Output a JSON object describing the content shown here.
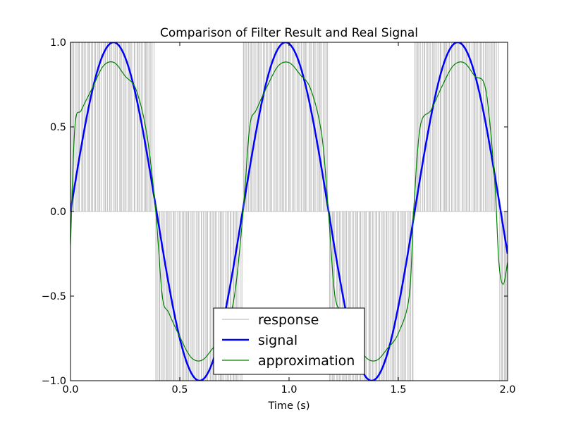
{
  "chart_data": {
    "type": "line",
    "title": "Comparison of Filter Result and Real Signal",
    "xlabel": "Time (s)",
    "ylabel": "",
    "xlim": [
      0.0,
      2.0
    ],
    "ylim": [
      -1.0,
      1.0
    ],
    "x_ticks": [
      0.0,
      0.5,
      1.0,
      1.5,
      2.0
    ],
    "x_tick_labels": [
      "0.0",
      "0.5",
      "1.0",
      "1.5",
      "2.0"
    ],
    "y_ticks": [
      1.0,
      0.5,
      0.0,
      -0.5,
      -1.0
    ],
    "y_tick_labels": [
      "1.0",
      "0.5",
      "0.0",
      "−0.5",
      "−1.0"
    ],
    "grid": false,
    "legend_position": "bottom-center",
    "series": [
      {
        "name": "response",
        "style": "pulse-stems",
        "color": "#c0c0c0",
        "positive_intervals": [
          [
            0.0,
            0.39
          ],
          [
            0.79,
            1.18
          ],
          [
            1.57,
            1.96
          ]
        ],
        "negative_intervals": [
          [
            0.39,
            0.79
          ],
          [
            1.18,
            1.57
          ],
          [
            1.96,
            2.0
          ]
        ],
        "stem_count": 300
      },
      {
        "name": "signal",
        "style": "thick-line",
        "color": "#0000ff",
        "function": "sine",
        "amplitude": 1.0,
        "frequency_hz": 1.27,
        "x": [
          0.0,
          0.1,
          0.2,
          0.3,
          0.4,
          0.5,
          0.6,
          0.7,
          0.8,
          0.9,
          1.0,
          1.1,
          1.2,
          1.3,
          1.4,
          1.5,
          1.6,
          1.7,
          1.8,
          1.9,
          2.0
        ],
        "y": [
          0.0,
          0.71,
          1.0,
          0.7,
          -0.02,
          -0.72,
          -1.0,
          -0.69,
          0.04,
          0.73,
          1.0,
          0.68,
          -0.05,
          -0.74,
          -1.0,
          -0.67,
          0.07,
          0.75,
          1.0,
          0.66,
          -0.08
        ]
      },
      {
        "name": "approximation",
        "style": "thin-line",
        "color": "#008000",
        "x": [
          0.0,
          0.02,
          0.05,
          0.1,
          0.15,
          0.2,
          0.25,
          0.3,
          0.35,
          0.39,
          0.42,
          0.45,
          0.5,
          0.55,
          0.6,
          0.65,
          0.7,
          0.75,
          0.79,
          0.82,
          0.85,
          0.9,
          0.95,
          1.0,
          1.05,
          1.1,
          1.15,
          1.18,
          1.21,
          1.25,
          1.3,
          1.35,
          1.4,
          1.45,
          1.5,
          1.55,
          1.57,
          1.6,
          1.65,
          1.7,
          1.75,
          1.8,
          1.85,
          1.9,
          1.94,
          1.96,
          1.98,
          2.0
        ],
        "y": [
          -0.2,
          0.5,
          0.6,
          0.73,
          0.86,
          0.88,
          0.8,
          0.72,
          0.45,
          0.0,
          -0.5,
          -0.6,
          -0.74,
          -0.86,
          -0.88,
          -0.81,
          -0.72,
          -0.5,
          0.0,
          0.5,
          0.6,
          0.74,
          0.86,
          0.88,
          0.81,
          0.72,
          0.45,
          0.0,
          -0.5,
          -0.6,
          -0.74,
          -0.86,
          -0.88,
          -0.81,
          -0.72,
          -0.5,
          0.0,
          0.5,
          0.6,
          0.74,
          0.86,
          0.88,
          0.8,
          0.72,
          0.2,
          -0.3,
          -0.43,
          -0.3
        ]
      }
    ]
  }
}
